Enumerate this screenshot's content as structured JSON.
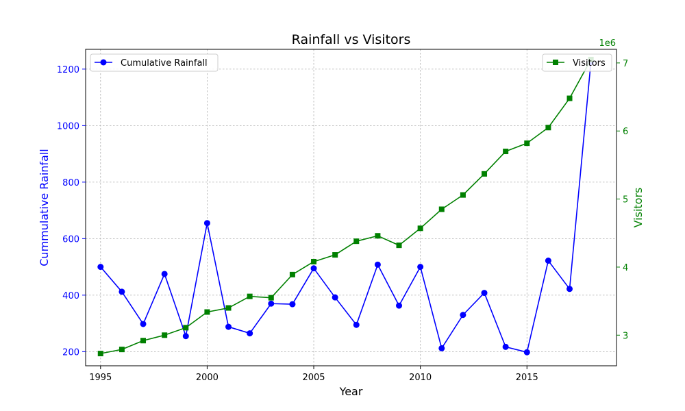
{
  "chart_data": {
    "type": "line",
    "title": "Rainfall vs Visitors",
    "xlabel": "Year",
    "ylabel_left": "Cummulative Rainfall",
    "ylabel_right": "Visitors",
    "right_axis_offset_text": "1e6",
    "x": [
      1995,
      1996,
      1997,
      1998,
      1999,
      2000,
      2001,
      2002,
      2003,
      2004,
      2005,
      2006,
      2007,
      2008,
      2009,
      2010,
      2011,
      2012,
      2013,
      2014,
      2015,
      2016,
      2017,
      2018
    ],
    "xlim": [
      1994.3,
      2019.2
    ],
    "xticks": [
      1995,
      2000,
      2005,
      2010,
      2015
    ],
    "ylim_left": [
      150,
      1270
    ],
    "yticks_left": [
      200,
      400,
      600,
      800,
      1000,
      1200
    ],
    "ylim_right": [
      2.55,
      7.2
    ],
    "yticks_right": [
      3,
      4,
      5,
      6,
      7
    ],
    "grid": true,
    "series": [
      {
        "name": "Cumulative Rainfall",
        "axis": "left",
        "color": "#0000ff",
        "marker": "circle",
        "values": [
          500,
          412,
          298,
          475,
          255,
          655,
          288,
          265,
          370,
          368,
          495,
          392,
          295,
          508,
          363,
          500,
          212,
          330,
          408,
          217,
          198,
          522,
          422,
          1225
        ]
      },
      {
        "name": "Visitors",
        "axis": "right",
        "color": "#008000",
        "marker": "square",
        "values": [
          2.73,
          2.79,
          2.92,
          3.0,
          3.11,
          3.34,
          3.4,
          3.57,
          3.55,
          3.89,
          4.08,
          4.18,
          4.38,
          4.46,
          4.32,
          4.57,
          4.85,
          5.06,
          5.37,
          5.7,
          5.82,
          6.05,
          6.48,
          7.05
        ]
      }
    ],
    "legend_left_placement": "upper left",
    "legend_right_placement": "upper right"
  }
}
